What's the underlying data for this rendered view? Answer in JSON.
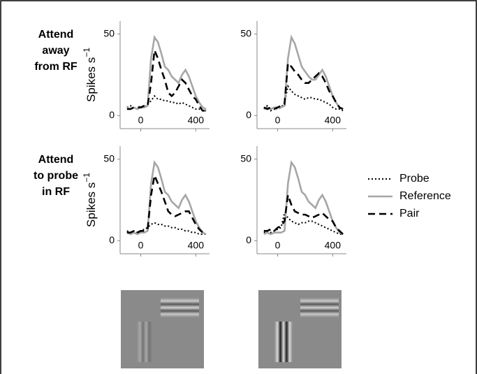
{
  "chart_data": [
    {
      "type": "line",
      "row_label": [
        "Attend",
        "away",
        "from RF"
      ],
      "ylabel": "Spikes s",
      "ylabel_exponent": "−1",
      "xlim": [
        -150,
        500
      ],
      "ylim": [
        -8,
        58
      ],
      "xticks": [
        0,
        400
      ],
      "yticks": [
        0,
        50
      ],
      "x": [
        -100,
        -75,
        -50,
        -25,
        0,
        25,
        50,
        75,
        100,
        125,
        150,
        175,
        200,
        225,
        250,
        275,
        300,
        325,
        350,
        375,
        400,
        425,
        450,
        475
      ],
      "series": [
        {
          "name": "Probe",
          "color": "#000000",
          "dash": "dotted",
          "values": [
            5,
            6,
            5,
            4,
            6,
            5,
            7,
            9,
            12,
            10,
            10,
            9,
            9,
            8,
            8,
            7,
            8,
            7,
            6,
            5,
            4,
            4,
            3,
            3
          ]
        },
        {
          "name": "Reference",
          "color": "#a6a6a6",
          "dash": "solid",
          "values": [
            5,
            4,
            5,
            4,
            5,
            5,
            6,
            35,
            48,
            45,
            38,
            30,
            28,
            24,
            22,
            20,
            25,
            28,
            24,
            18,
            12,
            8,
            5,
            4
          ]
        },
        {
          "name": "Pair",
          "color": "#000000",
          "dash": "dashed",
          "values": [
            4,
            4,
            5,
            5,
            5,
            6,
            6,
            20,
            40,
            35,
            28,
            22,
            14,
            12,
            14,
            18,
            22,
            20,
            16,
            12,
            10,
            6,
            3,
            3
          ]
        }
      ]
    },
    {
      "type": "line",
      "xlim": [
        -150,
        500
      ],
      "ylim": [
        -8,
        58
      ],
      "xticks": [
        0,
        400
      ],
      "yticks": [
        0,
        50
      ],
      "x": [
        -100,
        -75,
        -50,
        -25,
        0,
        25,
        50,
        75,
        100,
        125,
        150,
        175,
        200,
        225,
        250,
        275,
        300,
        325,
        350,
        375,
        400,
        425,
        450,
        475
      ],
      "series": [
        {
          "name": "Probe",
          "color": "#000000",
          "dash": "dotted",
          "values": [
            4,
            6,
            3,
            5,
            4,
            5,
            8,
            18,
            15,
            13,
            12,
            11,
            10,
            11,
            11,
            10,
            10,
            9,
            8,
            7,
            5,
            4,
            4,
            3
          ]
        },
        {
          "name": "Reference",
          "color": "#a6a6a6",
          "dash": "solid",
          "values": [
            4,
            5,
            4,
            5,
            5,
            5,
            6,
            35,
            48,
            44,
            37,
            30,
            27,
            24,
            22,
            22,
            25,
            28,
            24,
            18,
            12,
            8,
            5,
            4
          ]
        },
        {
          "name": "Pair",
          "color": "#000000",
          "dash": "dashed",
          "values": [
            5,
            4,
            5,
            4,
            5,
            6,
            7,
            32,
            30,
            27,
            25,
            22,
            20,
            20,
            22,
            24,
            26,
            24,
            20,
            15,
            12,
            8,
            5,
            4
          ]
        }
      ]
    },
    {
      "type": "line",
      "row_label": [
        "Attend",
        "to probe",
        "in RF"
      ],
      "ylabel": "Spikes s",
      "ylabel_exponent": "−1",
      "xlim": [
        -150,
        500
      ],
      "ylim": [
        -8,
        58
      ],
      "xticks": [
        0,
        400
      ],
      "yticks": [
        0,
        50
      ],
      "x": [
        -100,
        -75,
        -50,
        -25,
        0,
        25,
        50,
        75,
        100,
        125,
        150,
        175,
        200,
        225,
        250,
        275,
        300,
        325,
        350,
        375,
        400,
        425,
        450,
        475
      ],
      "series": [
        {
          "name": "Probe",
          "color": "#000000",
          "dash": "dotted",
          "values": [
            6,
            5,
            6,
            5,
            6,
            7,
            8,
            10,
            11,
            10,
            10,
            9,
            9,
            8,
            8,
            7,
            7,
            6,
            6,
            5,
            5,
            4,
            4,
            4
          ]
        },
        {
          "name": "Reference",
          "color": "#a6a6a6",
          "dash": "solid",
          "values": [
            5,
            4,
            5,
            4,
            5,
            5,
            6,
            35,
            48,
            45,
            38,
            30,
            28,
            24,
            22,
            20,
            25,
            28,
            24,
            18,
            12,
            8,
            5,
            4
          ]
        },
        {
          "name": "Pair",
          "color": "#000000",
          "dash": "dashed",
          "values": [
            5,
            5,
            6,
            5,
            6,
            6,
            7,
            28,
            40,
            35,
            30,
            24,
            18,
            16,
            15,
            16,
            17,
            18,
            18,
            14,
            10,
            7,
            5,
            4
          ]
        }
      ]
    },
    {
      "type": "line",
      "xlim": [
        -150,
        500
      ],
      "ylim": [
        -8,
        58
      ],
      "xticks": [
        0,
        400
      ],
      "yticks": [
        0,
        50
      ],
      "x": [
        -100,
        -75,
        -50,
        -25,
        0,
        25,
        50,
        75,
        100,
        125,
        150,
        175,
        200,
        225,
        250,
        275,
        300,
        325,
        350,
        375,
        400,
        425,
        450,
        475
      ],
      "series": [
        {
          "name": "Probe",
          "color": "#000000",
          "dash": "dotted",
          "values": [
            5,
            6,
            5,
            6,
            7,
            8,
            17,
            14,
            12,
            11,
            10,
            11,
            11,
            12,
            12,
            11,
            10,
            9,
            8,
            7,
            6,
            5,
            4,
            4
          ]
        },
        {
          "name": "Reference",
          "color": "#a6a6a6",
          "dash": "solid",
          "values": [
            4,
            5,
            4,
            5,
            5,
            5,
            6,
            35,
            48,
            45,
            38,
            30,
            28,
            24,
            22,
            20,
            25,
            28,
            24,
            18,
            12,
            8,
            5,
            4
          ]
        },
        {
          "name": "Pair",
          "color": "#000000",
          "dash": "dashed",
          "values": [
            6,
            6,
            7,
            6,
            8,
            9,
            12,
            28,
            22,
            18,
            17,
            16,
            16,
            15,
            14,
            15,
            16,
            17,
            15,
            13,
            12,
            8,
            6,
            4
          ]
        }
      ]
    }
  ]
}
